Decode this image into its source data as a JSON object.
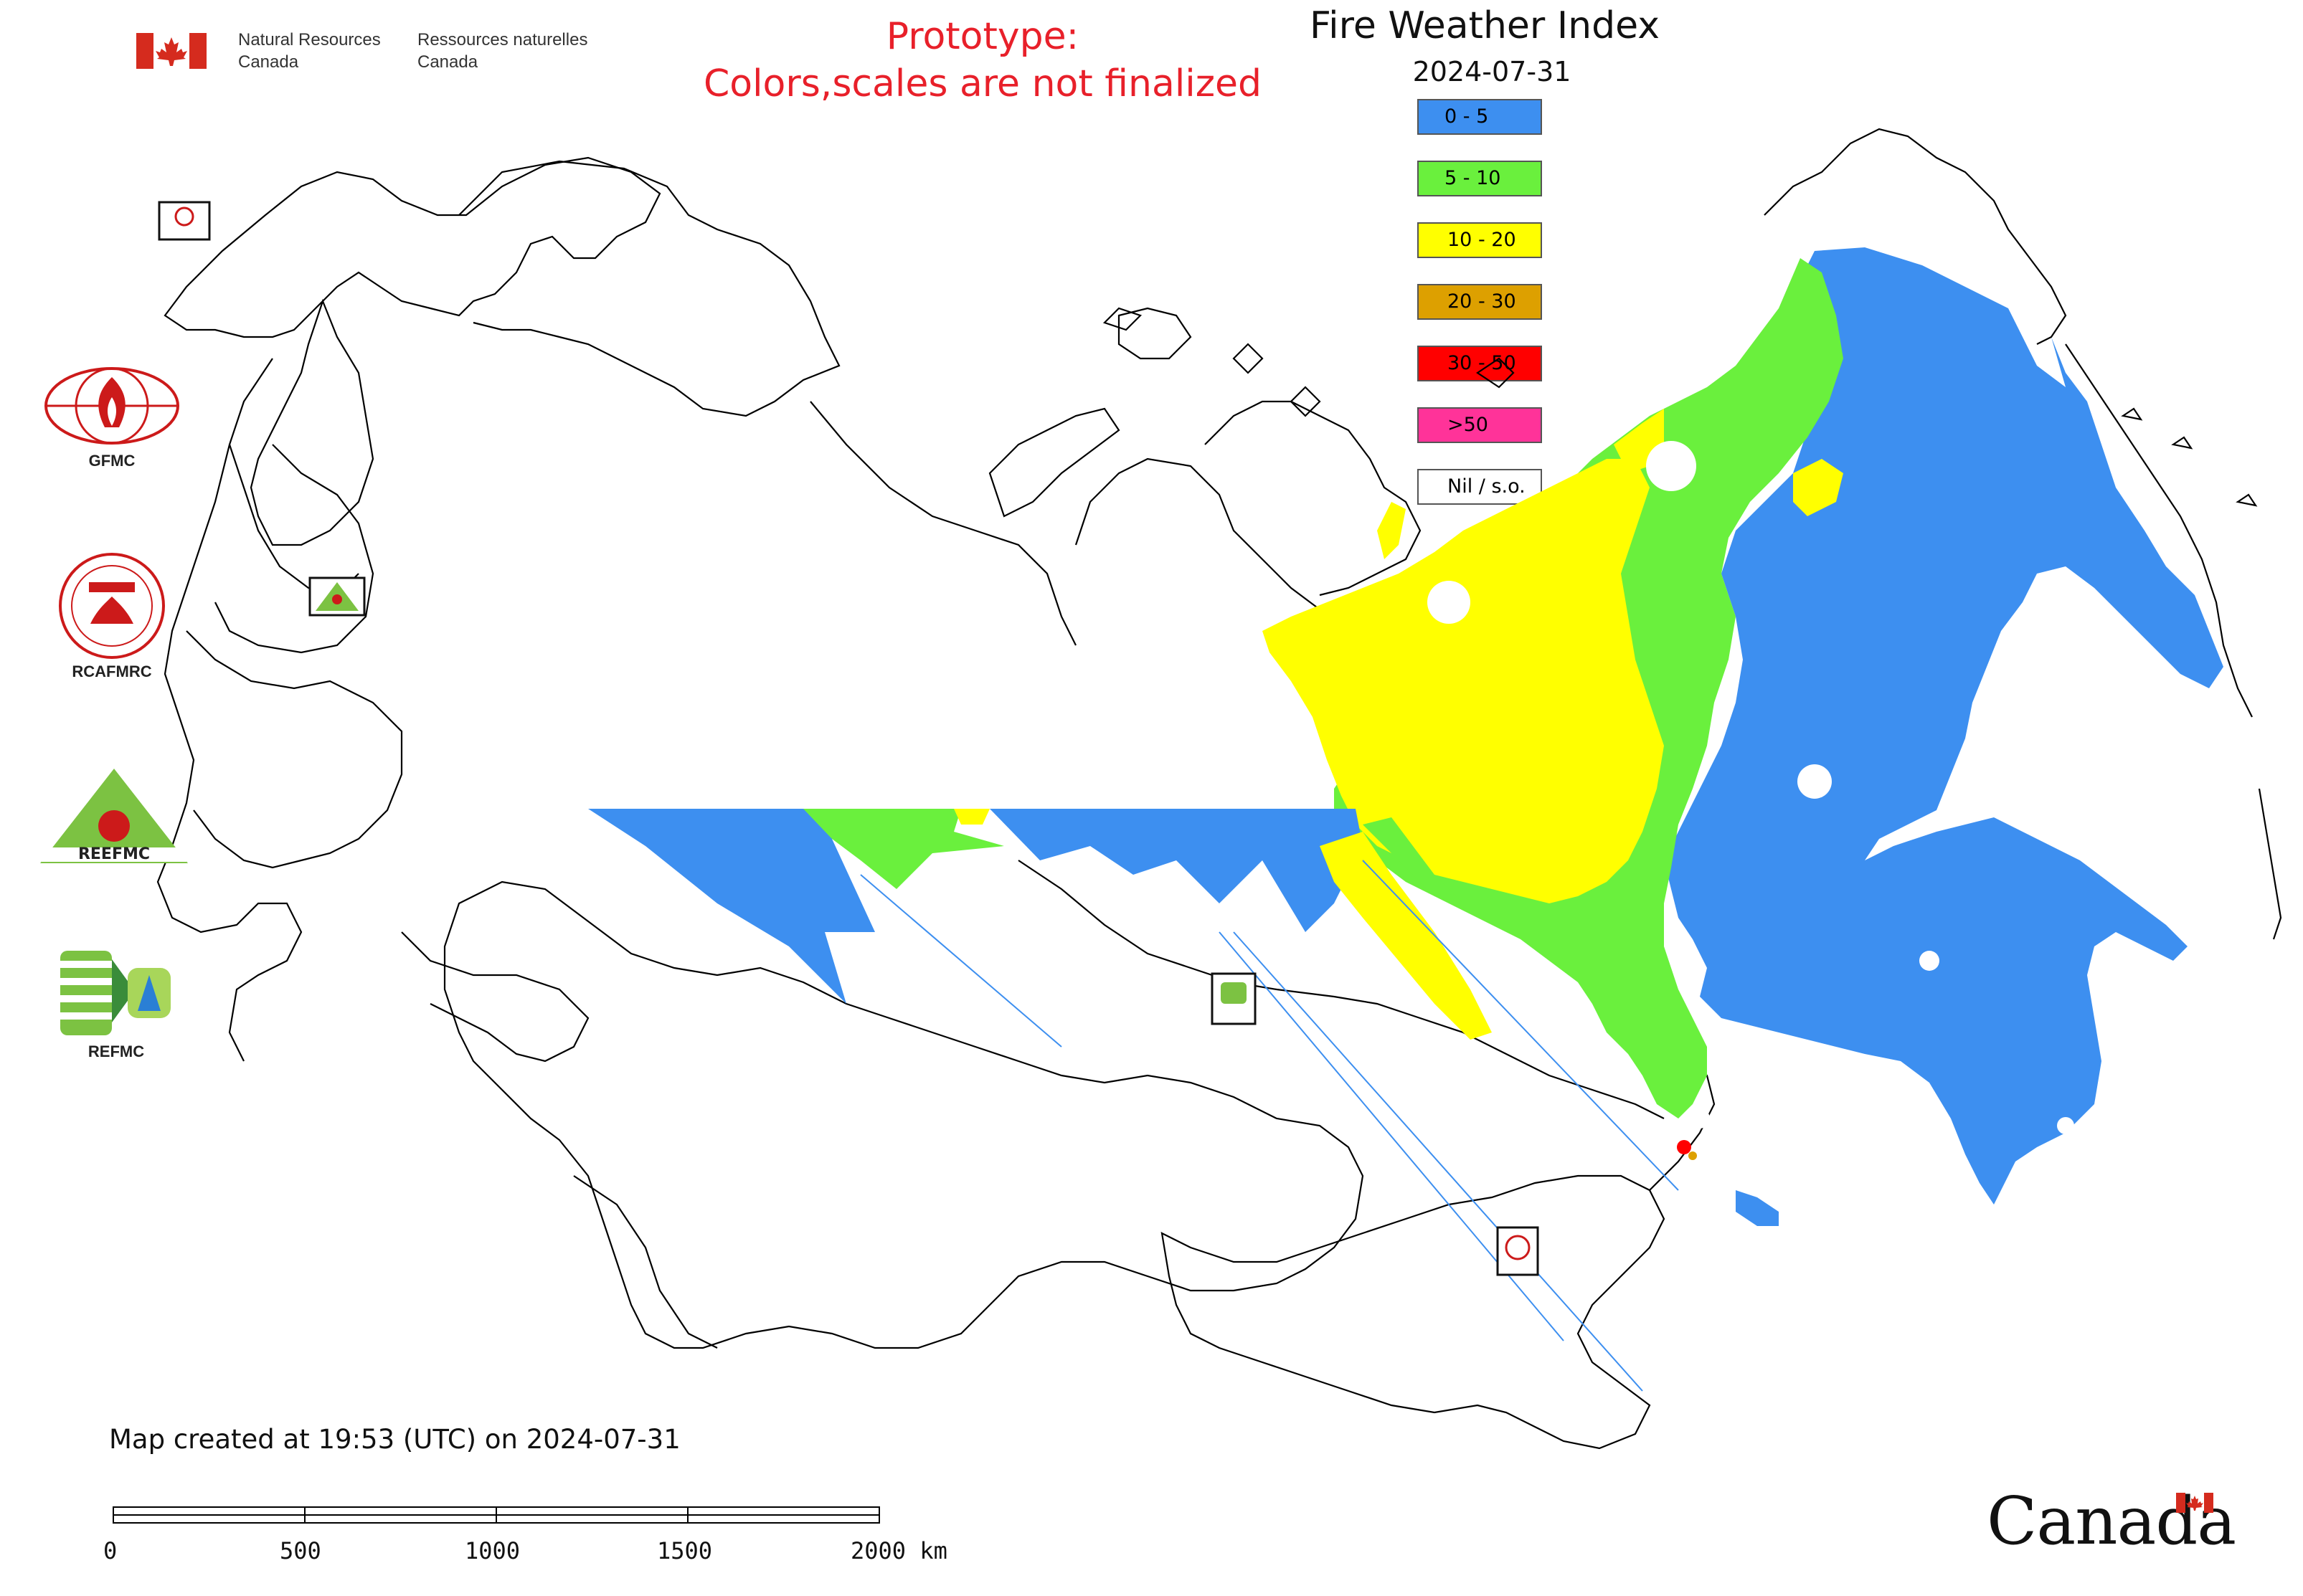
{
  "header": {
    "dept_en_line1": "Natural Resources",
    "dept_en_line2": "Canada",
    "dept_fr_line1": "Ressources naturelles",
    "dept_fr_line2": "Canada"
  },
  "prototype_notice": {
    "line1": "Prototype:",
    "line2": "Colors,scales are not finalized",
    "color": "#e8202a"
  },
  "map_title": "Fire Weather Index",
  "map_date": "2024-07-31",
  "legend": [
    {
      "label": "0 - 5",
      "color": "#3d8ff0"
    },
    {
      "label": "5 - 10",
      "color": "#6af03d"
    },
    {
      "label": "10 - 20",
      "color": "#ffff00"
    },
    {
      "label": "20 - 30",
      "color": "#dda000"
    },
    {
      "label": "30 - 50",
      "color": "#ff0000"
    },
    {
      "label": ">50",
      "color": "#ff3399"
    },
    {
      "label": "Nil / s.o.",
      "color": "#ffffff"
    }
  ],
  "organizations": [
    {
      "label": "GFMC",
      "icon": "gfmc-logo-icon"
    },
    {
      "label": "RCAFMRC",
      "icon": "rcafmrc-logo-icon"
    },
    {
      "label": "REEFMC",
      "icon": "reefmc-logo-icon"
    },
    {
      "label": "REFMC",
      "icon": "refmc-logo-icon"
    }
  ],
  "map_markers": [
    {
      "label": "GFMC",
      "icon": "gfmc-marker-icon"
    },
    {
      "label": "REEFMC",
      "icon": "reefmc-marker-icon"
    },
    {
      "label": "REFMC",
      "icon": "refmc-marker-icon"
    },
    {
      "label": "RCAFMRC",
      "icon": "rcafmrc-marker-icon"
    }
  ],
  "footer": {
    "created_text": "Map created at 19:53 (UTC) on 2024-07-31",
    "scale_labels": [
      "0",
      "500",
      "1000",
      "1500",
      "2000 km"
    ],
    "wordmark": "Canada"
  }
}
